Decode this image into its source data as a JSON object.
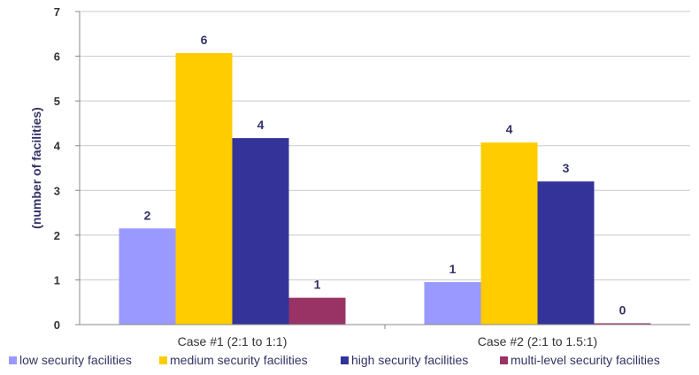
{
  "chart_data": {
    "type": "bar",
    "categories": [
      "Case #1 (2:1 to 1:1)",
      "Case #2 (2:1 to 1.5:1)"
    ],
    "series": [
      {
        "name": "low security facilities",
        "values": [
          2.15,
          0.95
        ],
        "labels": [
          "2",
          "1"
        ],
        "color": "#9999FF"
      },
      {
        "name": "medium security facilities",
        "values": [
          6.07,
          4.07
        ],
        "labels": [
          "6",
          "4"
        ],
        "color": "#FFCC00"
      },
      {
        "name": "high security facilities",
        "values": [
          4.17,
          3.2
        ],
        "labels": [
          "4",
          "3"
        ],
        "color": "#333399"
      },
      {
        "name": "multi-level security facilities",
        "values": [
          0.6,
          0.03
        ],
        "labels": [
          "1",
          "0"
        ],
        "color": "#993366"
      }
    ],
    "title": "",
    "xlabel": "",
    "ylabel": "(number of facilities)",
    "ylim": [
      0,
      7
    ],
    "yticks": [
      "0",
      "1",
      "2",
      "3",
      "4",
      "5",
      "6",
      "7"
    ],
    "grid": true,
    "legend": "bottom"
  }
}
